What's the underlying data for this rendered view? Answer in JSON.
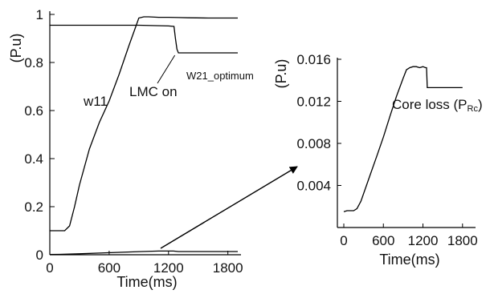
{
  "chart_data": [
    {
      "type": "line",
      "xlabel": "Time(ms)",
      "ylabel": "(P.u)",
      "xlim": [
        0,
        1900
      ],
      "ylim": [
        0,
        1.0
      ],
      "x_ticks": [
        "0",
        "600",
        "1200",
        "1800"
      ],
      "y_ticks": [
        "0",
        "0.2",
        "0.4",
        "0.6",
        "0.8",
        "1"
      ],
      "grid": false,
      "series": [
        {
          "name": "w11",
          "x": [
            0,
            150,
            200,
            250,
            300,
            400,
            500,
            600,
            700,
            800,
            870,
            900,
            950,
            1000,
            1100,
            1200,
            1300,
            1400,
            1600,
            1800,
            1900
          ],
          "y": [
            0.1,
            0.1,
            0.12,
            0.2,
            0.29,
            0.44,
            0.55,
            0.64,
            0.75,
            0.87,
            0.95,
            0.985,
            0.99,
            0.99,
            0.988,
            0.988,
            0.987,
            0.986,
            0.985,
            0.985,
            0.985
          ]
        },
        {
          "name": "W21_optimum",
          "x": [
            0,
            300,
            600,
            900,
            1200,
            1255,
            1270,
            1285,
            1300,
            1350,
            1500,
            1700,
            1900
          ],
          "y": [
            0.955,
            0.955,
            0.955,
            0.955,
            0.952,
            0.95,
            0.9,
            0.855,
            0.84,
            0.84,
            0.84,
            0.84,
            0.84
          ]
        },
        {
          "name": "Core loss",
          "x": [
            0,
            100,
            300,
            500,
            700,
            900,
            1100,
            1250,
            1300,
            1900
          ],
          "y": [
            0.0015,
            0.0016,
            0.004,
            0.007,
            0.01,
            0.013,
            0.0152,
            0.0153,
            0.0133,
            0.0133
          ]
        }
      ],
      "annotations": [
        {
          "text": "w11",
          "points_to": {
            "x": 600,
            "y": 0.64
          }
        },
        {
          "text": "LMC on",
          "points_to": {
            "x": 1280,
            "y": 0.85
          }
        },
        {
          "text": "W21_optimum",
          "points_to": {
            "x": 1300,
            "y": 0.84
          }
        }
      ],
      "zoom_arrow_target": "chart 2"
    },
    {
      "type": "line",
      "xlabel": "Time(ms)",
      "ylabel": "(P.u)",
      "xlim": [
        0,
        1900
      ],
      "ylim": [
        0,
        0.016
      ],
      "x_ticks": [
        "0",
        "600",
        "1200",
        "1800"
      ],
      "y_ticks": [
        "0.004",
        "0.008",
        "0.012",
        "0.016"
      ],
      "grid": false,
      "series": [
        {
          "name": "Core loss (PRc)",
          "x": [
            0,
            50,
            100,
            150,
            200,
            260,
            400,
            500,
            600,
            700,
            800,
            900,
            950,
            1000,
            1050,
            1100,
            1150,
            1200,
            1240,
            1255,
            1265,
            1300,
            1400,
            1600,
            1800
          ],
          "y": [
            0.0015,
            0.0016,
            0.0016,
            0.0016,
            0.0018,
            0.0025,
            0.005,
            0.0068,
            0.0086,
            0.0106,
            0.0125,
            0.0142,
            0.015,
            0.0152,
            0.0153,
            0.0153,
            0.0152,
            0.0153,
            0.0152,
            0.0152,
            0.0133,
            0.0133,
            0.0133,
            0.0133,
            0.0133
          ]
        }
      ],
      "annotations": [
        {
          "text_main": "Core loss (P",
          "text_sub": "Rc",
          "text_close": ")"
        }
      ]
    }
  ]
}
